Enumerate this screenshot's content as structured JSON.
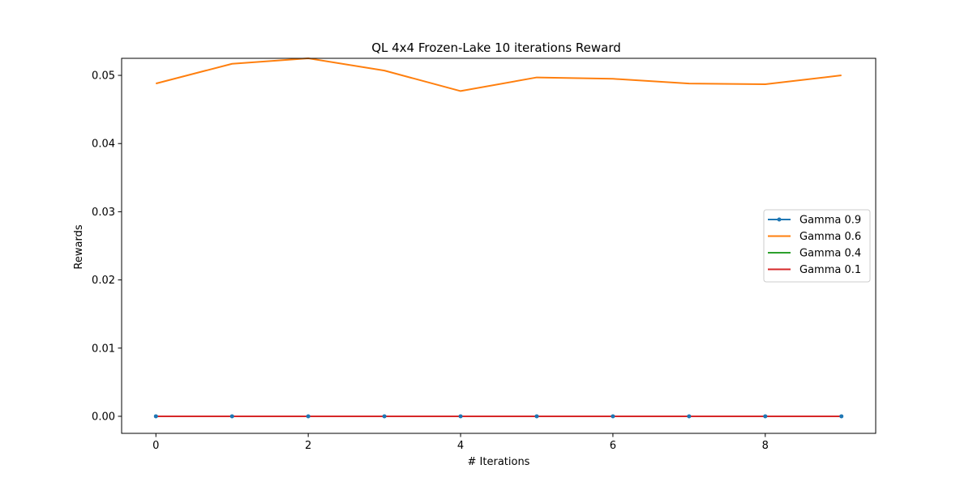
{
  "chart_data": {
    "type": "line",
    "title": "QL 4x4 Frozen-Lake 10 iterations  Reward",
    "xlabel": "# Iterations",
    "ylabel": "Rewards",
    "x": [
      0,
      1,
      2,
      3,
      4,
      5,
      6,
      7,
      8,
      9
    ],
    "xlim": [
      -0.45,
      9.45
    ],
    "ylim": [
      -0.0025,
      0.0525
    ],
    "x_ticks": [
      0,
      2,
      4,
      6,
      8
    ],
    "y_ticks": [
      0.0,
      0.01,
      0.02,
      0.03,
      0.04,
      0.05
    ],
    "x_tick_labels": [
      "0",
      "2",
      "4",
      "6",
      "8"
    ],
    "y_tick_labels": [
      "0.00",
      "0.01",
      "0.02",
      "0.03",
      "0.04",
      "0.05"
    ],
    "grid": false,
    "legend_position": "center-right",
    "series": [
      {
        "name": "Gamma 0.9",
        "values": [
          0,
          0,
          0,
          0,
          0,
          0,
          0,
          0,
          0,
          0
        ],
        "color": "#1f77b4",
        "marker": "point"
      },
      {
        "name": "Gamma 0.6",
        "values": [
          0.0488,
          0.0517,
          0.0525,
          0.0507,
          0.0477,
          0.0497,
          0.0495,
          0.0488,
          0.0487,
          0.05
        ],
        "color": "#ff7f0e",
        "marker": "none"
      },
      {
        "name": "Gamma 0.4",
        "values": [
          0,
          0,
          0,
          0,
          0,
          0,
          0,
          0,
          0,
          0
        ],
        "color": "#2ca02c",
        "marker": "none"
      },
      {
        "name": "Gamma 0.1",
        "values": [
          0,
          0,
          0,
          0,
          0,
          0,
          0,
          0,
          0,
          0
        ],
        "color": "#d62728",
        "marker": "none"
      }
    ]
  }
}
